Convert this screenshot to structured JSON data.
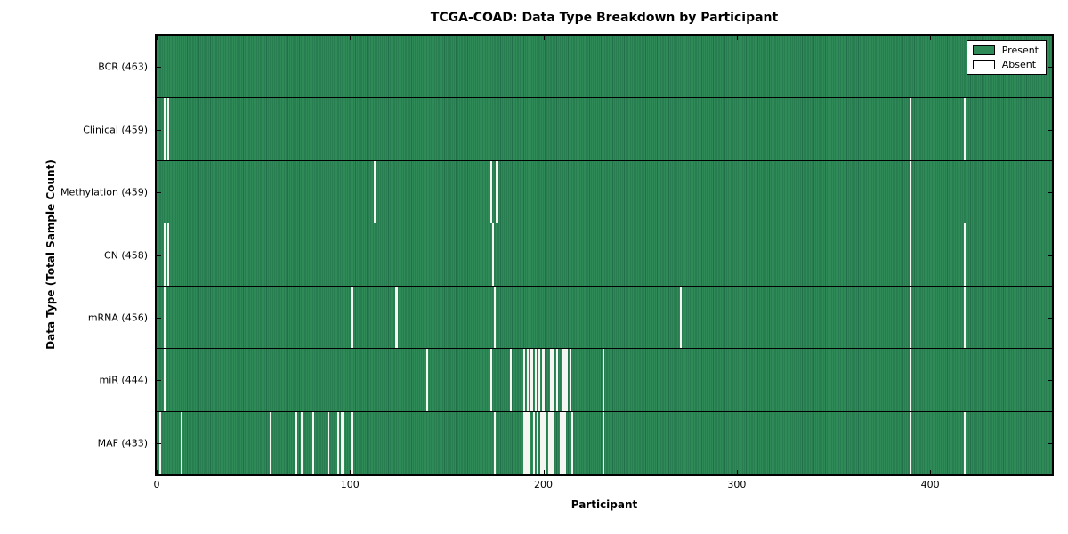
{
  "chart_data": {
    "type": "heatmap",
    "title": "TCGA-COAD: Data Type Breakdown by Participant",
    "xlabel": "Participant",
    "ylabel": "Data Type (Total Sample Count)",
    "xlim": [
      0,
      463
    ],
    "x_ticks": [
      0,
      100,
      200,
      300,
      400
    ],
    "n_participants": 463,
    "grid": false,
    "legend_position": "upper right",
    "legend": [
      {
        "label": "Present",
        "color": "#2e8b57"
      },
      {
        "label": "Absent",
        "color": "#ffffff"
      }
    ],
    "colors": {
      "present": "#2e8b57",
      "cell_edge": "#22704a",
      "absent": "#f5f5f2",
      "frame": "#000000",
      "background": "#ffffff"
    },
    "rows": [
      {
        "label": "BCR (463)",
        "data_type": "BCR",
        "total_samples": 463,
        "absent_participants": []
      },
      {
        "label": "Clinical (459)",
        "data_type": "Clinical",
        "total_samples": 459,
        "absent_participants": [
          4,
          6,
          390,
          418
        ]
      },
      {
        "label": "Methylation (459)",
        "data_type": "Methylation",
        "total_samples": 459,
        "absent_participants": [
          113,
          173,
          176,
          390
        ]
      },
      {
        "label": "CN (458)",
        "data_type": "CN",
        "total_samples": 458,
        "absent_participants": [
          4,
          6,
          174,
          390,
          418
        ]
      },
      {
        "label": "mRNA (456)",
        "data_type": "mRNA",
        "total_samples": 456,
        "absent_participants": [
          4,
          101,
          124,
          175,
          271,
          390,
          418
        ]
      },
      {
        "label": "miR (444)",
        "data_type": "miR",
        "total_samples": 444,
        "absent_participants": [
          4,
          140,
          173,
          183,
          190,
          192,
          194,
          196,
          198,
          200,
          204,
          205,
          207,
          210,
          211,
          212,
          214,
          231,
          390
        ]
      },
      {
        "label": "MAF (433)",
        "data_type": "MAF",
        "total_samples": 433,
        "absent_participants": [
          2,
          13,
          59,
          72,
          75,
          81,
          89,
          94,
          96,
          101,
          175,
          190,
          191,
          192,
          193,
          195,
          197,
          199,
          200,
          201,
          203,
          204,
          205,
          209,
          210,
          211,
          215,
          231,
          390,
          418
        ]
      }
    ]
  }
}
